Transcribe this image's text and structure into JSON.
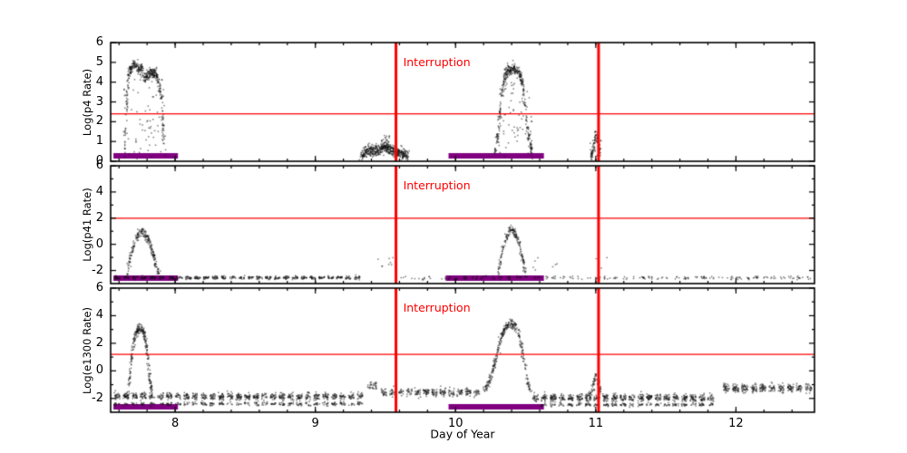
{
  "chart_data": {
    "type": "scatter",
    "xlabel": "Day of Year",
    "x_range": [
      7.54,
      12.56
    ],
    "x_ticks": [
      8,
      9,
      10,
      11,
      12
    ],
    "x_minor_step": 0.2,
    "interruption_label": "Interruption",
    "interruption_x": [
      9.575,
      11.02
    ],
    "colors": {
      "line": "#ff0000",
      "points": "#111111",
      "bar": "#800080",
      "axis": "#000000"
    },
    "panels": [
      {
        "ylabel": "Log(p4 Rate)",
        "y_range": [
          0,
          6
        ],
        "y_ticks": [
          0,
          1,
          2,
          3,
          4,
          5,
          6
        ],
        "y_minor": [],
        "threshold": 2.4,
        "bars": [
          [
            7.56,
            8.02
          ],
          [
            9.95,
            10.63
          ]
        ],
        "segments": [
          {
            "kind": "curve",
            "pts": [
              [
                7.635,
                0.4
              ],
              [
                7.655,
                2.9
              ],
              [
                7.665,
                4.3
              ],
              [
                7.68,
                4.7
              ],
              [
                7.7,
                4.85
              ],
              [
                7.72,
                4.9
              ],
              [
                7.74,
                4.6
              ],
              [
                7.76,
                4.75
              ],
              [
                7.78,
                4.1
              ],
              [
                7.8,
                4.35
              ],
              [
                7.825,
                4.5
              ],
              [
                7.85,
                4.45
              ],
              [
                7.87,
                4.3
              ],
              [
                7.885,
                3.9
              ],
              [
                7.9,
                3.3
              ],
              [
                7.915,
                1.8
              ],
              [
                7.93,
                0.5
              ]
            ],
            "n": 420,
            "jx": 0.005,
            "jy": 0.13
          },
          {
            "kind": "scatter",
            "x0": 7.63,
            "x1": 7.94,
            "y0": 0.1,
            "y1": 4.2,
            "n": 70
          },
          {
            "kind": "curve",
            "pts": [
              [
                9.33,
                0.3
              ],
              [
                9.37,
                0.5
              ],
              [
                9.41,
                0.55
              ],
              [
                9.45,
                0.5
              ],
              [
                9.47,
                0.65
              ],
              [
                9.5,
                0.85
              ],
              [
                9.52,
                0.6
              ],
              [
                9.56,
                0.5
              ],
              [
                9.6,
                0.45
              ],
              [
                9.63,
                0.35
              ],
              [
                9.66,
                0.25
              ]
            ],
            "n": 520,
            "jx": 0.008,
            "jy": 0.14
          },
          {
            "kind": "scatter",
            "x0": 9.47,
            "x1": 9.53,
            "y0": 0.6,
            "y1": 1.35,
            "n": 25
          },
          {
            "kind": "curve",
            "pts": [
              [
                10.28,
                0.4
              ],
              [
                10.305,
                1.6
              ],
              [
                10.325,
                3.2
              ],
              [
                10.345,
                4.1
              ],
              [
                10.365,
                4.5
              ],
              [
                10.39,
                4.65
              ],
              [
                10.42,
                4.7
              ],
              [
                10.445,
                4.5
              ],
              [
                10.465,
                4.3
              ],
              [
                10.485,
                3.6
              ],
              [
                10.5,
                2.6
              ],
              [
                10.52,
                1.4
              ],
              [
                10.545,
                0.4
              ]
            ],
            "n": 380,
            "jx": 0.005,
            "jy": 0.14
          },
          {
            "kind": "scatter",
            "x0": 10.29,
            "x1": 10.55,
            "y0": 0.2,
            "y1": 4.0,
            "n": 60
          },
          {
            "kind": "curve",
            "pts": [
              [
                10.965,
                0.2
              ],
              [
                10.985,
                0.7
              ],
              [
                11.0,
                1.45
              ],
              [
                11.015,
                0.9
              ],
              [
                11.03,
                0.3
              ]
            ],
            "n": 90,
            "jx": 0.004,
            "jy": 0.1
          },
          {
            "kind": "scatter",
            "x0": 10.96,
            "x1": 11.04,
            "y0": 0.1,
            "y1": 1.1,
            "n": 18
          }
        ]
      },
      {
        "ylabel": "Log(p41 Rate)",
        "y_range": [
          -3,
          6
        ],
        "y_ticks": [
          -2,
          0,
          2,
          4,
          6
        ],
        "y_minor": [
          -1,
          1,
          3,
          5
        ],
        "threshold": 2.0,
        "bars": [
          [
            7.56,
            8.02
          ],
          [
            9.93,
            10.63
          ]
        ],
        "segments": [
          {
            "kind": "band",
            "x0": 7.555,
            "x1": 9.33,
            "y": -2.55,
            "n": 520,
            "jy": 0.06
          },
          {
            "kind": "band",
            "x0": 9.6,
            "x1": 11.05,
            "y": -2.55,
            "n": 110,
            "jy": 0.07
          },
          {
            "kind": "band",
            "x0": 11.05,
            "x1": 12.55,
            "y": -2.55,
            "n": 130,
            "jy": 0.07
          },
          {
            "kind": "curve",
            "pts": [
              [
                7.655,
                -2.3
              ],
              [
                7.68,
                -1.0
              ],
              [
                7.7,
                -0.2
              ],
              [
                7.72,
                0.5
              ],
              [
                7.745,
                0.85
              ],
              [
                7.77,
                0.9
              ],
              [
                7.795,
                0.6
              ],
              [
                7.82,
                0.1
              ],
              [
                7.845,
                -0.8
              ],
              [
                7.87,
                -1.9
              ],
              [
                7.89,
                -2.4
              ]
            ],
            "n": 220,
            "jx": 0.005,
            "jy": 0.17
          },
          {
            "kind": "curve",
            "pts": [
              [
                10.3,
                -2.2
              ],
              [
                10.325,
                -1.0
              ],
              [
                10.35,
                0.2
              ],
              [
                10.375,
                0.9
              ],
              [
                10.4,
                1.15
              ],
              [
                10.425,
                0.9
              ],
              [
                10.45,
                0.2
              ],
              [
                10.475,
                -1.0
              ],
              [
                10.5,
                -2.2
              ]
            ],
            "n": 180,
            "jx": 0.005,
            "jy": 0.17
          },
          {
            "kind": "scatter",
            "x0": 9.42,
            "x1": 9.58,
            "y0": -1.8,
            "y1": -0.8,
            "n": 8
          },
          {
            "kind": "scatter",
            "x0": 10.55,
            "x1": 11.1,
            "y0": -2.2,
            "y1": -1.0,
            "n": 10
          }
        ]
      },
      {
        "ylabel": "Log(e1300 Rate)",
        "y_range": [
          -3,
          6
        ],
        "y_ticks": [
          -2,
          0,
          2,
          4,
          6
        ],
        "y_minor": [
          -1,
          1,
          3,
          5
        ],
        "threshold": 1.2,
        "bars": [
          [
            7.56,
            8.02
          ],
          [
            9.95,
            10.63
          ]
        ],
        "segments": [
          {
            "kind": "band",
            "x0": 7.555,
            "x1": 9.35,
            "y": -1.85,
            "n": 800,
            "jy": 0.13
          },
          {
            "kind": "band",
            "x0": 7.555,
            "x1": 9.35,
            "y": -2.4,
            "n": 320,
            "jy": 0.06
          },
          {
            "kind": "curve",
            "pts": [
              [
                7.665,
                -1.5
              ],
              [
                7.685,
                0.5
              ],
              [
                7.7,
                1.8
              ],
              [
                7.715,
                2.6
              ],
              [
                7.735,
                3.0
              ],
              [
                7.755,
                3.1
              ],
              [
                7.775,
                2.8
              ],
              [
                7.79,
                2.2
              ],
              [
                7.805,
                1.0
              ],
              [
                7.82,
                -0.5
              ],
              [
                7.835,
                -1.5
              ]
            ],
            "n": 260,
            "jx": 0.005,
            "jy": 0.18
          },
          {
            "kind": "scatter",
            "x0": 9.37,
            "x1": 9.44,
            "y0": -1.3,
            "y1": -0.8,
            "n": 30
          },
          {
            "kind": "band",
            "x0": 9.46,
            "x1": 10.18,
            "y": -1.55,
            "n": 300,
            "jy": 0.15
          },
          {
            "kind": "curve",
            "pts": [
              [
                10.2,
                -1.4
              ],
              [
                10.24,
                -0.8
              ],
              [
                10.28,
                0.6
              ],
              [
                10.315,
                2.2
              ],
              [
                10.345,
                3.0
              ],
              [
                10.375,
                3.35
              ],
              [
                10.405,
                3.4
              ],
              [
                10.435,
                3.1
              ],
              [
                10.46,
                2.3
              ],
              [
                10.485,
                1.0
              ],
              [
                10.51,
                -0.6
              ],
              [
                10.535,
                -1.6
              ]
            ],
            "n": 320,
            "jx": 0.005,
            "jy": 0.17
          },
          {
            "kind": "band",
            "x0": 10.54,
            "x1": 11.85,
            "y": -1.95,
            "n": 650,
            "jy": 0.13
          },
          {
            "kind": "band",
            "x0": 10.6,
            "x1": 11.85,
            "y": -2.45,
            "n": 240,
            "jy": 0.06
          },
          {
            "kind": "curve",
            "pts": [
              [
                10.955,
                -1.8
              ],
              [
                10.98,
                -1.1
              ],
              [
                11.0,
                -0.45
              ],
              [
                11.02,
                -0.9
              ],
              [
                11.045,
                -1.7
              ]
            ],
            "n": 70,
            "jx": 0.005,
            "jy": 0.15
          },
          {
            "kind": "band",
            "x0": 11.9,
            "x1": 12.55,
            "y": -1.25,
            "n": 330,
            "jy": 0.15
          }
        ]
      }
    ]
  }
}
